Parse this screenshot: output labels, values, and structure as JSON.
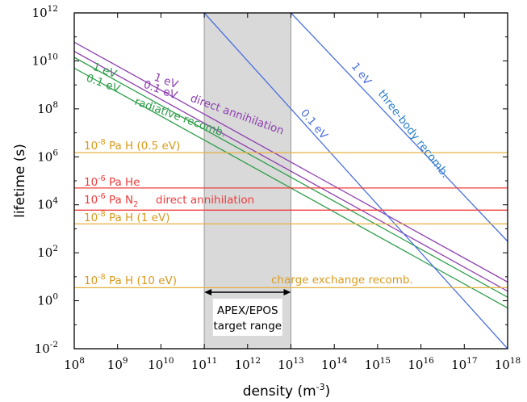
{
  "chart_data": {
    "type": "line",
    "xlabel": "density (m",
    "xlabel_sup": "-3",
    "xlabel_end": ")",
    "ylabel": "lifetime (s)",
    "xscale": "log",
    "yscale": "log",
    "xlim": [
      100000000.0,
      1e+18
    ],
    "ylim": [
      0.01,
      1000000000000.0
    ],
    "x_tick_exponents": [
      8,
      9,
      10,
      11,
      12,
      13,
      14,
      15,
      16,
      17,
      18
    ],
    "y_tick_exponents": [
      -2,
      0,
      2,
      4,
      6,
      8,
      10,
      12
    ],
    "tick_base": "10",
    "series": [
      {
        "color": "#8e3fb0",
        "x": [
          100000000.0,
          1e+18
        ],
        "y": [
          60000000000.0,
          6.0
        ]
      },
      {
        "color": "#8e3fb0",
        "x": [
          100000000.0,
          1e+18
        ],
        "y": [
          25000000000.0,
          2.5
        ]
      },
      {
        "color": "#2e9e4a",
        "x": [
          100000000.0,
          1e+18
        ],
        "y": [
          14000000000.0,
          1.4
        ]
      },
      {
        "color": "#2e9e4a",
        "x": [
          100000000.0,
          1e+18
        ],
        "y": [
          5000000000.0,
          0.5
        ]
      },
      {
        "color": "#4a6fe0",
        "x": [
          100000000000.0,
          1e+18
        ],
        "y": [
          1000000000000.0,
          0.01
        ]
      },
      {
        "color": "#4a6fe0",
        "x": [
          10000000000000.0,
          1e+18
        ],
        "y": [
          1000000000000.0,
          300.0
        ]
      },
      {
        "color": "#e8b040",
        "x": [
          100000000.0,
          1e+18
        ],
        "y": [
          1500000.0,
          1500000.0
        ]
      },
      {
        "color": "#f03c3c",
        "x": [
          100000000.0,
          1e+18
        ],
        "y": [
          50000.0,
          50000.0
        ]
      },
      {
        "color": "#f03c3c",
        "x": [
          100000000.0,
          1e+18
        ],
        "y": [
          6000.0,
          6000.0
        ]
      },
      {
        "color": "#e8b040",
        "x": [
          100000000.0,
          1e+18
        ],
        "y": [
          1600.0,
          1600.0
        ]
      },
      {
        "color": "#e8b040",
        "x": [
          100000000.0,
          1e+18
        ],
        "y": [
          3.5,
          3.5
        ]
      }
    ],
    "shaded_region": {
      "x": [
        100000000000.0,
        10000000000000.0
      ],
      "color": "#d9d9d9"
    },
    "range_bar": {
      "x": [
        100000000000.0,
        10000000000000.0
      ],
      "y": 0.15,
      "label_line1": "APEX/EPOS",
      "label_line2": "target range"
    },
    "annotations": [
      {
        "text": "1 eV",
        "color": "#8e3fb0"
      },
      {
        "text": "0.1 eV",
        "color": "#8e3fb0"
      },
      {
        "text": "direct annihilation",
        "color": "#8e3fb0"
      },
      {
        "text": "1 eV",
        "color": "#2e9e4a"
      },
      {
        "text": "0.1 eV",
        "color": "#2e9e4a"
      },
      {
        "text": "radiative recomb.",
        "color": "#2e9e4a"
      },
      {
        "text": "0.1 eV",
        "color": "#4a6fe0"
      },
      {
        "text": "1 eV",
        "color": "#4a6fe0"
      },
      {
        "text": "three-body recomb.",
        "color": "#2a7fc9"
      },
      {
        "text": "direct annihilation",
        "color": "#f03c3c"
      },
      {
        "text": "charge exchange recomb.",
        "color": "#d99a1c"
      }
    ],
    "level_labels": [
      {
        "base": "10",
        "exp": "-8",
        "rest": " Pa H (0.5 eV)",
        "color": "#d99a1c"
      },
      {
        "base": "10",
        "exp": "-6",
        "rest": " Pa He",
        "color": "#f03c3c"
      },
      {
        "base": "10",
        "exp": "-6",
        "rest": " Pa N",
        "sub": "2",
        "color": "#f03c3c"
      },
      {
        "base": "10",
        "exp": "-8",
        "rest": " Pa H (1 eV)",
        "color": "#d99a1c"
      },
      {
        "base": "10",
        "exp": "-8",
        "rest": " Pa H (10 eV)",
        "color": "#d99a1c"
      }
    ]
  }
}
